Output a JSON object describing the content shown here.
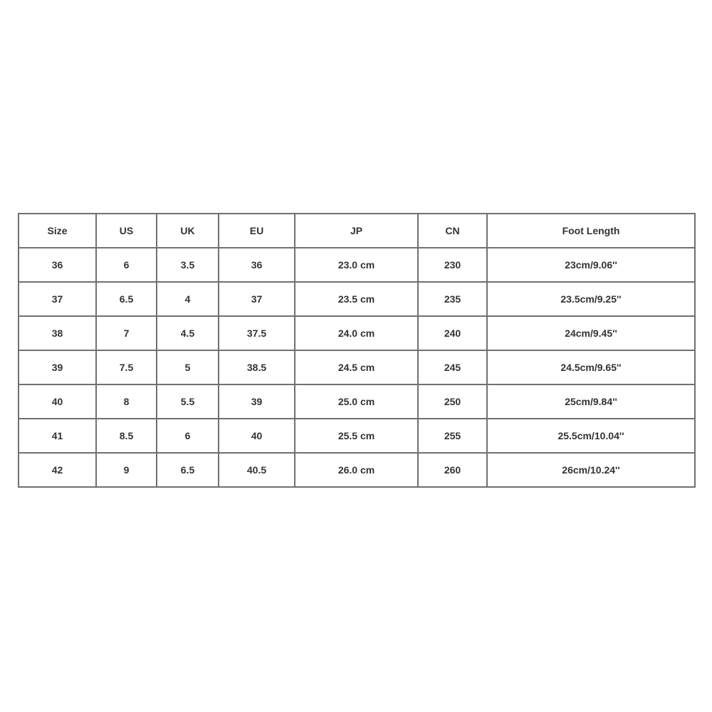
{
  "table": {
    "headers": [
      "Size",
      "US",
      "UK",
      "EU",
      "JP",
      "CN",
      "Foot Length"
    ],
    "rows": [
      [
        "36",
        "6",
        "3.5",
        "36",
        "23.0 cm",
        "230",
        "23cm/9.06''"
      ],
      [
        "37",
        "6.5",
        "4",
        "37",
        "23.5 cm",
        "235",
        "23.5cm/9.25''"
      ],
      [
        "38",
        "7",
        "4.5",
        "37.5",
        "24.0 cm",
        "240",
        "24cm/9.45''"
      ],
      [
        "39",
        "7.5",
        "5",
        "38.5",
        "24.5 cm",
        "245",
        "24.5cm/9.65''"
      ],
      [
        "40",
        "8",
        "5.5",
        "39",
        "25.0 cm",
        "250",
        "25cm/9.84''"
      ],
      [
        "41",
        "8.5",
        "6",
        "40",
        "25.5 cm",
        "255",
        "25.5cm/10.04''"
      ],
      [
        "42",
        "9",
        "6.5",
        "40.5",
        "26.0 cm",
        "260",
        "26cm/10.24''"
      ]
    ]
  }
}
